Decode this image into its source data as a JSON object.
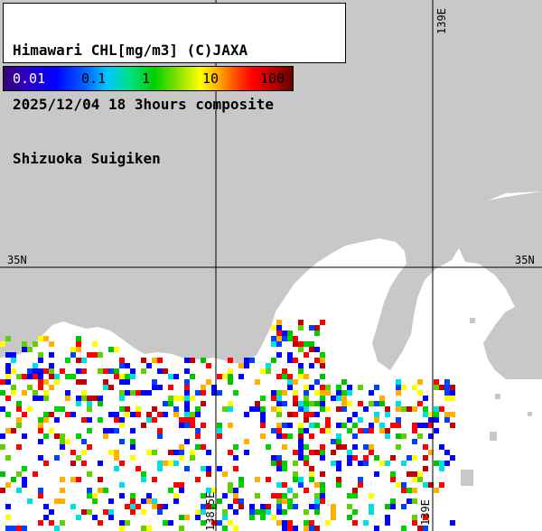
{
  "header": {
    "line1": "Himawari CHL[mg/m3] (C)JAXA",
    "line2": "2025/12/04 18 3hours composite",
    "line3": "Shizuoka Suigiken"
  },
  "colorbar": {
    "labels": [
      "0.01",
      "0.1",
      "1",
      "10",
      "100"
    ]
  },
  "graticule": {
    "lat_label": "35N",
    "lon_label": "139E",
    "lon_label_alt": "138.5E"
  },
  "colors": {
    "land": "#c8c8c8",
    "sea": "#ffffff",
    "grid": "#000000"
  }
}
